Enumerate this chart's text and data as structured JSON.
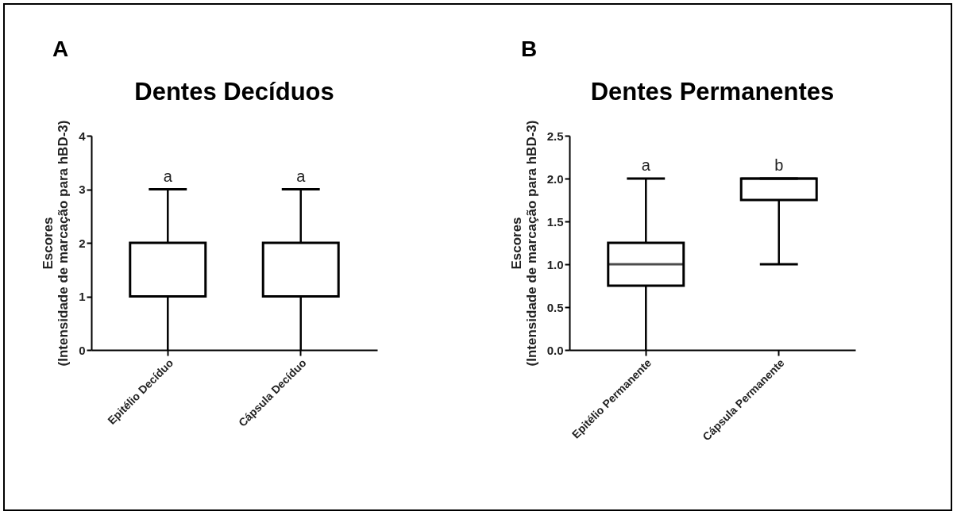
{
  "chart_data": [
    {
      "type": "box",
      "title": "Dentes Decíduos",
      "ylabel": "Escores\n(Intensidade de marcação para hBD-3)",
      "categories": [
        "Epitélio Decíduo",
        "Cápsula Decíduo"
      ],
      "boxes": [
        {
          "low": 0,
          "q1": 1,
          "median": 1,
          "q3": 2,
          "high": 3
        },
        {
          "low": 0,
          "q1": 1,
          "median": 1,
          "q3": 2,
          "high": 3
        }
      ],
      "ylim": [
        0,
        4
      ],
      "yticks": [
        0,
        1,
        2,
        3,
        4
      ],
      "annotations": [
        "A",
        "a",
        "a"
      ]
    },
    {
      "type": "box",
      "title": "Dentes Permanentes",
      "ylabel": "Escores\n(Intensidade de marcação para hBD-3)",
      "categories": [
        "Epitélio Permanente",
        "Cápsula Permanente"
      ],
      "boxes": [
        {
          "low": 0,
          "q1": 0.75,
          "median": 1,
          "q3": 1.25,
          "high": 2
        },
        {
          "low": 1,
          "q1": 1.75,
          "median": 2,
          "q3": 2,
          "high": 2
        }
      ],
      "ylim": [
        0,
        2.5
      ],
      "yticks": [
        {
          "value": 0,
          "label": "0.0"
        },
        {
          "value": 0.5,
          "label": "0.5"
        },
        {
          "value": 1,
          "label": "1.0"
        },
        {
          "value": 1.5,
          "label": "1.5"
        },
        {
          "value": 2,
          "label": "2.0"
        },
        {
          "value": 2.5,
          "label": "2.5"
        }
      ],
      "annotations": [
        "B",
        "a",
        "b"
      ]
    }
  ]
}
